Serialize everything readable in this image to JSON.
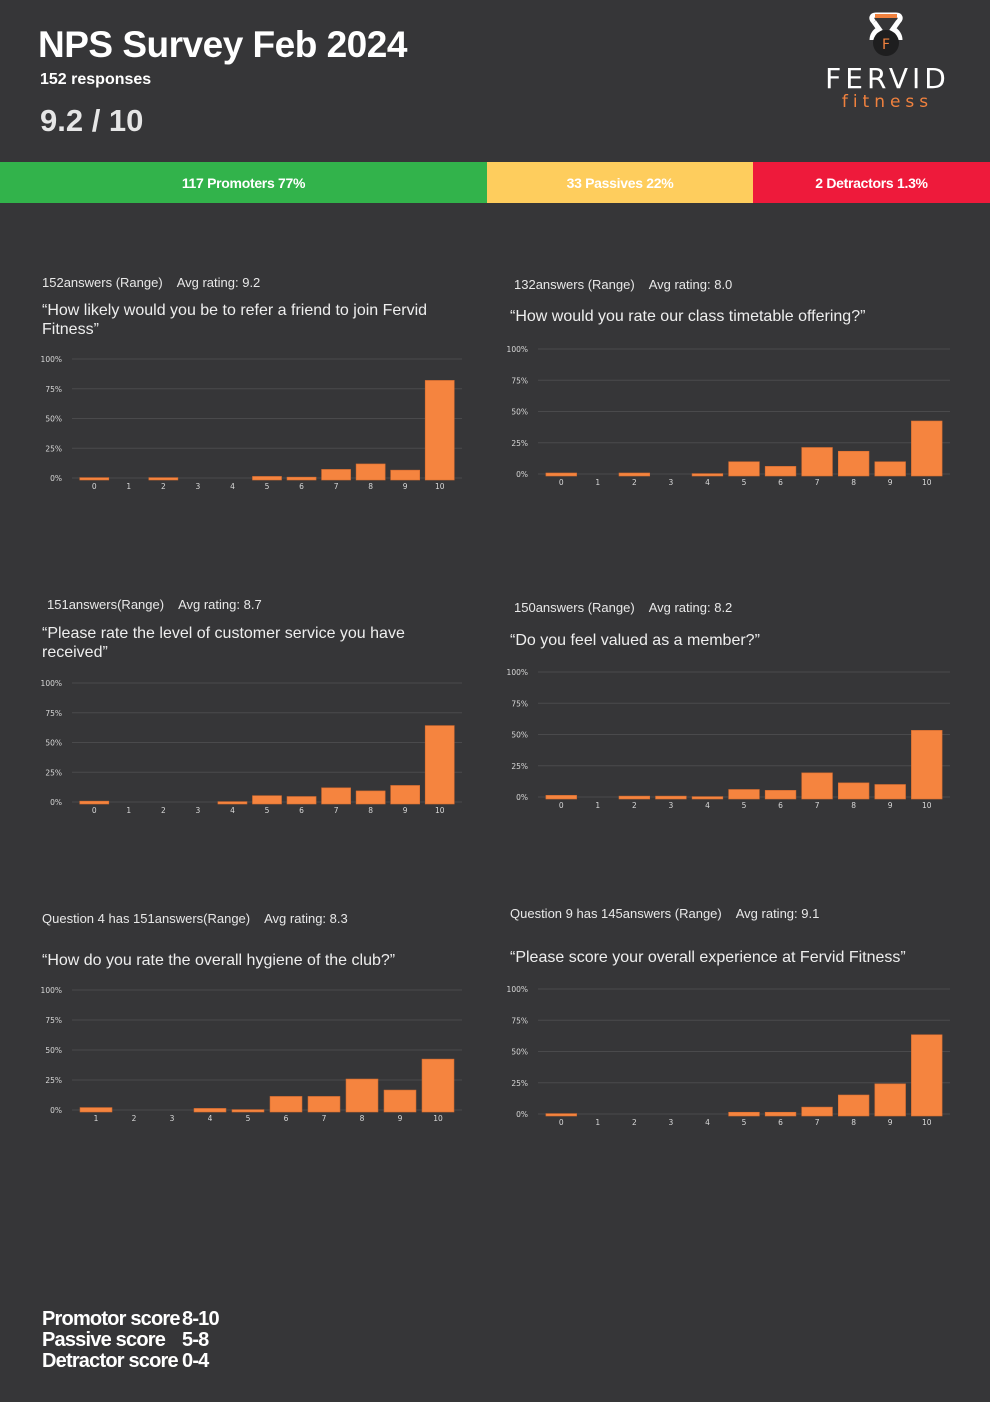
{
  "header": {
    "title": "NPS Survey Feb 2024",
    "responses": "152 responses",
    "score": "9.2 / 10"
  },
  "logo": {
    "brand": "FERVID",
    "sub": "fitness",
    "icon_letter": "F",
    "accent": "#f0813e"
  },
  "nps_bar": {
    "promoters": {
      "label": "117 Promoters 77%",
      "count": 117,
      "percent": 77,
      "color": "#32b34b"
    },
    "passives": {
      "label": "33 Passives 22%",
      "count": 33,
      "percent": 22,
      "color": "#fecd5d"
    },
    "detractors": {
      "label": "2 Detractors 1.3%",
      "count": 2,
      "percent": 1.3,
      "color": "#ee1a3b"
    }
  },
  "panels": [
    {
      "meta_answers": "152answers (Range)",
      "meta_avg": "Avg rating:  9.2",
      "question": "“How  likely would you be to refer a friend to join Fervid Fitness”"
    },
    {
      "meta_answers": "132answers (Range)",
      "meta_avg": "Avg rating:  8.0",
      "question": "“How  would you rate our class timetable offering?”"
    },
    {
      "meta_answers": "151answers(Range)",
      "meta_avg": "Avg rating:  8.7",
      "question": "“Please  rate the level of customer service you have received”"
    },
    {
      "meta_answers": "150answers (Range)",
      "meta_avg": "Avg rating:  8.2",
      "question": "“Do  you feel valued as a member?”"
    },
    {
      "meta_answers": "Question  4 has 151answers(Range)",
      "meta_avg": "Avg rating:  8.3",
      "question": "“How  do you rate the overall hygiene of the club?”"
    },
    {
      "meta_answers": "Question  9 has 145answers (Range)",
      "meta_avg": "Avg rating:  9.1",
      "question": "“Please  score your overall experience at Fervid Fitness”"
    }
  ],
  "chart_data": [
    {
      "type": "bar",
      "title": "How likely would you be to refer a friend to join Fervid Fitness",
      "xlabel": "",
      "ylabel": "",
      "ylim": [
        0,
        100
      ],
      "yticks": [
        "100%",
        "75%",
        "50%",
        "25%",
        "0%"
      ],
      "grid": true,
      "bar_color": "#f5843f",
      "categories": [
        "0",
        "1",
        "2",
        "3",
        "4",
        "5",
        "6",
        "7",
        "8",
        "9",
        "10"
      ],
      "values": [
        0.3,
        0,
        0.3,
        0,
        0,
        1.3,
        0.7,
        7.2,
        11.8,
        6.6,
        82
      ]
    },
    {
      "type": "bar",
      "title": "How would you rate our class timetable offering?",
      "xlabel": "",
      "ylabel": "",
      "ylim": [
        0,
        100
      ],
      "yticks": [
        "100%",
        "75%",
        "50%",
        "25%",
        "0%"
      ],
      "grid": true,
      "bar_color": "#f5843f",
      "categories": [
        "0",
        "1",
        "2",
        "3",
        "4",
        "5",
        "6",
        "7",
        "8",
        "9",
        "10"
      ],
      "values": [
        0.8,
        0,
        0.8,
        0,
        0.3,
        9.8,
        6.1,
        21.2,
        18.2,
        9.8,
        42.4
      ]
    },
    {
      "type": "bar",
      "title": "Please rate the level of customer service you have received",
      "xlabel": "",
      "ylabel": "",
      "ylim": [
        0,
        100
      ],
      "yticks": [
        "100%",
        "75%",
        "50%",
        "25%",
        "0%"
      ],
      "grid": true,
      "bar_color": "#f5843f",
      "categories": [
        "0",
        "1",
        "2",
        "3",
        "4",
        "5",
        "6",
        "7",
        "8",
        "9",
        "10"
      ],
      "values": [
        0.7,
        0,
        0,
        0,
        0.3,
        5.3,
        4.6,
        11.9,
        9.3,
        13.9,
        64.2
      ]
    },
    {
      "type": "bar",
      "title": "Do you feel valued as a member?",
      "xlabel": "",
      "ylabel": "",
      "ylim": [
        0,
        100
      ],
      "yticks": [
        "100%",
        "75%",
        "50%",
        "25%",
        "0%"
      ],
      "grid": true,
      "bar_color": "#f5843f",
      "categories": [
        "0",
        "1",
        "2",
        "3",
        "4",
        "5",
        "6",
        "7",
        "8",
        "9",
        "10"
      ],
      "values": [
        1.3,
        0,
        0.7,
        0.7,
        0.3,
        6,
        5.3,
        19.3,
        11.3,
        10,
        53.3
      ]
    },
    {
      "type": "bar",
      "title": "How do you rate the overall hygiene of the club?",
      "xlabel": "",
      "ylabel": "",
      "ylim": [
        0,
        100
      ],
      "yticks": [
        "100%",
        "75%",
        "50%",
        "25%",
        "0%"
      ],
      "grid": true,
      "bar_color": "#f5843f",
      "categories": [
        "1",
        "2",
        "3",
        "4",
        "5",
        "6",
        "7",
        "8",
        "9",
        "10"
      ],
      "values": [
        2,
        0,
        0,
        1.3,
        0.3,
        11.3,
        11.3,
        25.8,
        16.6,
        42.4
      ]
    },
    {
      "type": "bar",
      "title": "Please score your overall experience at Fervid Fitness",
      "xlabel": "",
      "ylabel": "",
      "ylim": [
        0,
        100
      ],
      "yticks": [
        "100%",
        "75%",
        "50%",
        "25%",
        "0%"
      ],
      "grid": true,
      "bar_color": "#f5843f",
      "categories": [
        "0",
        "1",
        "2",
        "3",
        "4",
        "5",
        "6",
        "7",
        "8",
        "9",
        "10"
      ],
      "values": [
        0.3,
        0,
        0,
        0,
        0,
        1.4,
        1.4,
        5.5,
        15.2,
        24.1,
        63.4
      ]
    }
  ],
  "legend": [
    {
      "label": "Promotor score",
      "range": "8-10"
    },
    {
      "label": "Passive score",
      "range": "5-8"
    },
    {
      "label": "Detractor score",
      "range": "0-4"
    }
  ]
}
